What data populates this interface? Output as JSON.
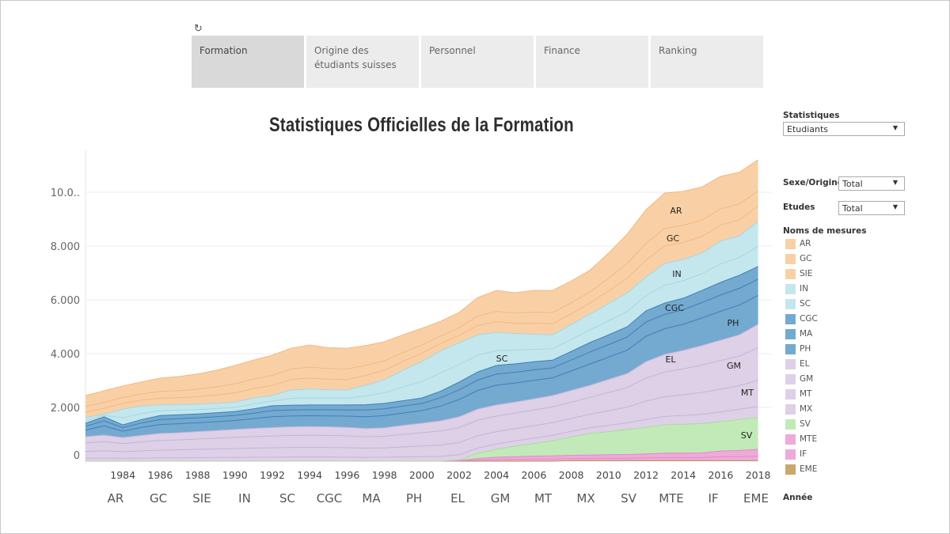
{
  "tabs": [
    {
      "label": "Formation",
      "active": true
    },
    {
      "label": "Origine des étudiants suisses",
      "active": false
    },
    {
      "label": "Personnel",
      "active": false
    },
    {
      "label": "Finance",
      "active": false
    },
    {
      "label": "Ranking",
      "active": false
    }
  ],
  "icons": {
    "refresh": "refresh-icon",
    "dropdown": "triangle-down-icon"
  },
  "filters": {
    "statistiques": {
      "label": "Statistiques",
      "value": "Etudiants"
    },
    "sexe_origine": {
      "label": "Sexe/Origine",
      "value": "Total"
    },
    "etudes": {
      "label": "Etudes",
      "value": "Total"
    }
  },
  "legend": {
    "title": "Noms de mesures"
  },
  "columns_label": "Année",
  "chart_data": {
    "type": "area",
    "stacked": true,
    "title": "Statistiques Officielles de la Formation",
    "xlabel": "",
    "ylabel": "",
    "x": [
      1982,
      1983,
      1984,
      1985,
      1986,
      1987,
      1988,
      1989,
      1990,
      1991,
      1992,
      1993,
      1994,
      1995,
      1996,
      1997,
      1998,
      1999,
      2000,
      2001,
      2002,
      2003,
      2004,
      2005,
      2006,
      2007,
      2008,
      2009,
      2010,
      2011,
      2012,
      2013,
      2014,
      2015,
      2016,
      2017,
      2018
    ],
    "x_ticks": [
      "1984",
      "1986",
      "1988",
      "1990",
      "1992",
      "1994",
      "1996",
      "1998",
      "2000",
      "2002",
      "2004",
      "2006",
      "2008",
      "2010",
      "2012",
      "2014",
      "2016",
      "2018"
    ],
    "ylim": [
      0,
      11500
    ],
    "y_ticks": [
      0,
      2000,
      4000,
      6000,
      8000,
      10000
    ],
    "y_tick_labels": [
      "0",
      "2.000",
      "4.000",
      "6.000",
      "8.000",
      "10.0.."
    ],
    "grid": true,
    "legend_position": "right",
    "series": [
      {
        "name": "AR",
        "color": "#f9d0a6",
        "line": "#f4b880",
        "values": [
          410,
          435,
          430,
          450,
          500,
          525,
          560,
          615,
          680,
          705,
          750,
          775,
          820,
          780,
          775,
          740,
          705,
          660,
          620,
          550,
          565,
          695,
          780,
          755,
          815,
          825,
          810,
          815,
          940,
          1095,
          1250,
          1310,
          1265,
          1230,
          1205,
          1180,
          1145
        ]
      },
      {
        "name": "GC",
        "color": "#f9d0a6",
        "line": "#f4b880",
        "values": [
          205,
          218,
          215,
          225,
          250,
          263,
          280,
          308,
          340,
          353,
          375,
          388,
          410,
          390,
          388,
          370,
          353,
          330,
          310,
          275,
          283,
          348,
          390,
          378,
          408,
          413,
          405,
          408,
          470,
          548,
          625,
          655,
          633,
          615,
          603,
          590,
          573
        ]
      },
      {
        "name": "SIE",
        "color": "#f9d0a6",
        "line": "#f4b880",
        "values": [
          205,
          218,
          215,
          225,
          250,
          263,
          280,
          308,
          340,
          353,
          375,
          388,
          410,
          390,
          388,
          370,
          353,
          330,
          310,
          275,
          283,
          348,
          390,
          378,
          408,
          413,
          405,
          408,
          470,
          548,
          625,
          655,
          633,
          615,
          603,
          590,
          573
        ]
      },
      {
        "name": "IN",
        "color": "#c3e7ed",
        "line": "#a7d7e2",
        "values": [
          116,
          55,
          325,
          275,
          215,
          204,
          198,
          193,
          193,
          220,
          209,
          314,
          325,
          314,
          308,
          396,
          484,
          622,
          743,
          825,
          803,
          759,
          677,
          622,
          561,
          517,
          550,
          583,
          638,
          693,
          693,
          809,
          792,
          765,
          842,
          809,
          919
        ]
      },
      {
        "name": "SC",
        "color": "#c3e7ed",
        "line": "#a7d7e2",
        "values": [
          94,
          45,
          265,
          225,
          175,
          166,
          162,
          157,
          157,
          180,
          171,
          256,
          265,
          256,
          252,
          324,
          396,
          508,
          607,
          675,
          657,
          621,
          553,
          508,
          459,
          423,
          450,
          477,
          522,
          567,
          567,
          661,
          648,
          625,
          688,
          661,
          751
        ]
      },
      {
        "name": "CGC",
        "color": "#74a9d0",
        "line": "#3f80b8",
        "values": [
          110,
          150,
          103,
          130,
          147,
          147,
          145,
          145,
          147,
          161,
          178,
          176,
          176,
          178,
          183,
          196,
          200,
          202,
          207,
          242,
          284,
          304,
          323,
          312,
          304,
          290,
          319,
          350,
          365,
          383,
          416,
          420,
          427,
          451,
          473,
          486,
          473
        ]
      },
      {
        "name": "MA",
        "color": "#74a9d0",
        "line": "#3f80b8",
        "values": [
          140,
          190,
          132,
          165,
          188,
          188,
          185,
          185,
          188,
          204,
          227,
          224,
          224,
          227,
          232,
          249,
          255,
          258,
          263,
          308,
          361,
          386,
          412,
          398,
          386,
          370,
          406,
          445,
          465,
          487,
          529,
          535,
          543,
          574,
          602,
          619,
          602
        ]
      },
      {
        "name": "PH",
        "color": "#74a9d0",
        "line": "#3f80b8",
        "values": [
          250,
          340,
          235,
          295,
          335,
          335,
          330,
          330,
          335,
          365,
          405,
          400,
          400,
          405,
          415,
          445,
          455,
          460,
          470,
          550,
          645,
          690,
          735,
          710,
          690,
          660,
          725,
          795,
          830,
          870,
          945,
          955,
          970,
          1025,
          1075,
          1105,
          1075
        ]
      },
      {
        "name": "EL",
        "color": "#ddd0e7",
        "line": "#c6b4d8",
        "values": [
          228,
          243,
          220,
          240,
          258,
          265,
          275,
          285,
          295,
          305,
          313,
          320,
          323,
          320,
          315,
          303,
          310,
          333,
          353,
          375,
          400,
          413,
          413,
          410,
          415,
          420,
          433,
          448,
          485,
          520,
          610,
          655,
          688,
          725,
          758,
          788,
          868
        ]
      },
      {
        "name": "GM",
        "color": "#ddd0e7",
        "line": "#c6b4d8",
        "values": [
          319,
          340,
          308,
          336,
          361,
          371,
          385,
          399,
          413,
          427,
          438,
          448,
          452,
          448,
          441,
          424,
          434,
          466,
          494,
          525,
          560,
          578,
          578,
          574,
          581,
          588,
          606,
          627,
          679,
          728,
          854,
          917,
          963,
          1015,
          1061,
          1103,
          1215
        ]
      },
      {
        "name": "MT",
        "color": "#ddd0e7",
        "line": "#c6b4d8",
        "values": [
          255,
          272,
          246,
          269,
          288,
          297,
          308,
          319,
          330,
          342,
          350,
          358,
          361,
          358,
          353,
          339,
          347,
          372,
          395,
          420,
          448,
          462,
          462,
          459,
          465,
          470,
          484,
          501,
          543,
          582,
          683,
          734,
          770,
          812,
          848,
          882,
          972
        ]
      },
      {
        "name": "MX",
        "color": "#ddd0e7",
        "line": "#c6b4d8",
        "values": [
          109,
          116,
          106,
          115,
          124,
          127,
          132,
          137,
          142,
          146,
          150,
          154,
          155,
          154,
          151,
          145,
          149,
          160,
          169,
          180,
          192,
          198,
          198,
          197,
          199,
          202,
          208,
          215,
          233,
          250,
          293,
          314,
          330,
          348,
          364,
          378,
          416
        ]
      },
      {
        "name": "SV",
        "color": "#c2eab8",
        "line": "#a9dc9d",
        "values": [
          0,
          0,
          0,
          0,
          0,
          0,
          0,
          0,
          0,
          0,
          0,
          0,
          0,
          0,
          0,
          0,
          0,
          0,
          0,
          0,
          20,
          190,
          290,
          390,
          470,
          560,
          680,
          800,
          860,
          930,
          990,
          1050,
          1070,
          1090,
          1090,
          1150,
          1180
        ]
      },
      {
        "name": "MTE",
        "color": "#eeaad9",
        "line": "#e08cc6",
        "values": [
          0,
          0,
          0,
          0,
          0,
          0,
          0,
          0,
          0,
          0,
          0,
          0,
          0,
          0,
          0,
          0,
          0,
          0,
          0,
          0,
          18,
          60,
          90,
          102,
          114,
          120,
          120,
          126,
          132,
          138,
          150,
          168,
          168,
          174,
          216,
          228,
          252
        ]
      },
      {
        "name": "IF",
        "color": "#eeaad9",
        "line": "#e08cc6",
        "values": [
          0,
          0,
          0,
          0,
          0,
          0,
          0,
          0,
          0,
          0,
          0,
          0,
          0,
          0,
          0,
          0,
          0,
          0,
          0,
          0,
          12,
          40,
          60,
          68,
          76,
          80,
          80,
          84,
          88,
          92,
          100,
          112,
          112,
          116,
          144,
          152,
          168
        ]
      },
      {
        "name": "EME",
        "color": "#c9a86b",
        "line": "#b8945a",
        "values": [
          0,
          0,
          0,
          0,
          0,
          0,
          0,
          0,
          0,
          0,
          0,
          0,
          0,
          0,
          0,
          0,
          0,
          0,
          0,
          0,
          0,
          0,
          0,
          0,
          0,
          0,
          20,
          20,
          20,
          20,
          20,
          20,
          20,
          20,
          20,
          20,
          20
        ]
      }
    ]
  }
}
